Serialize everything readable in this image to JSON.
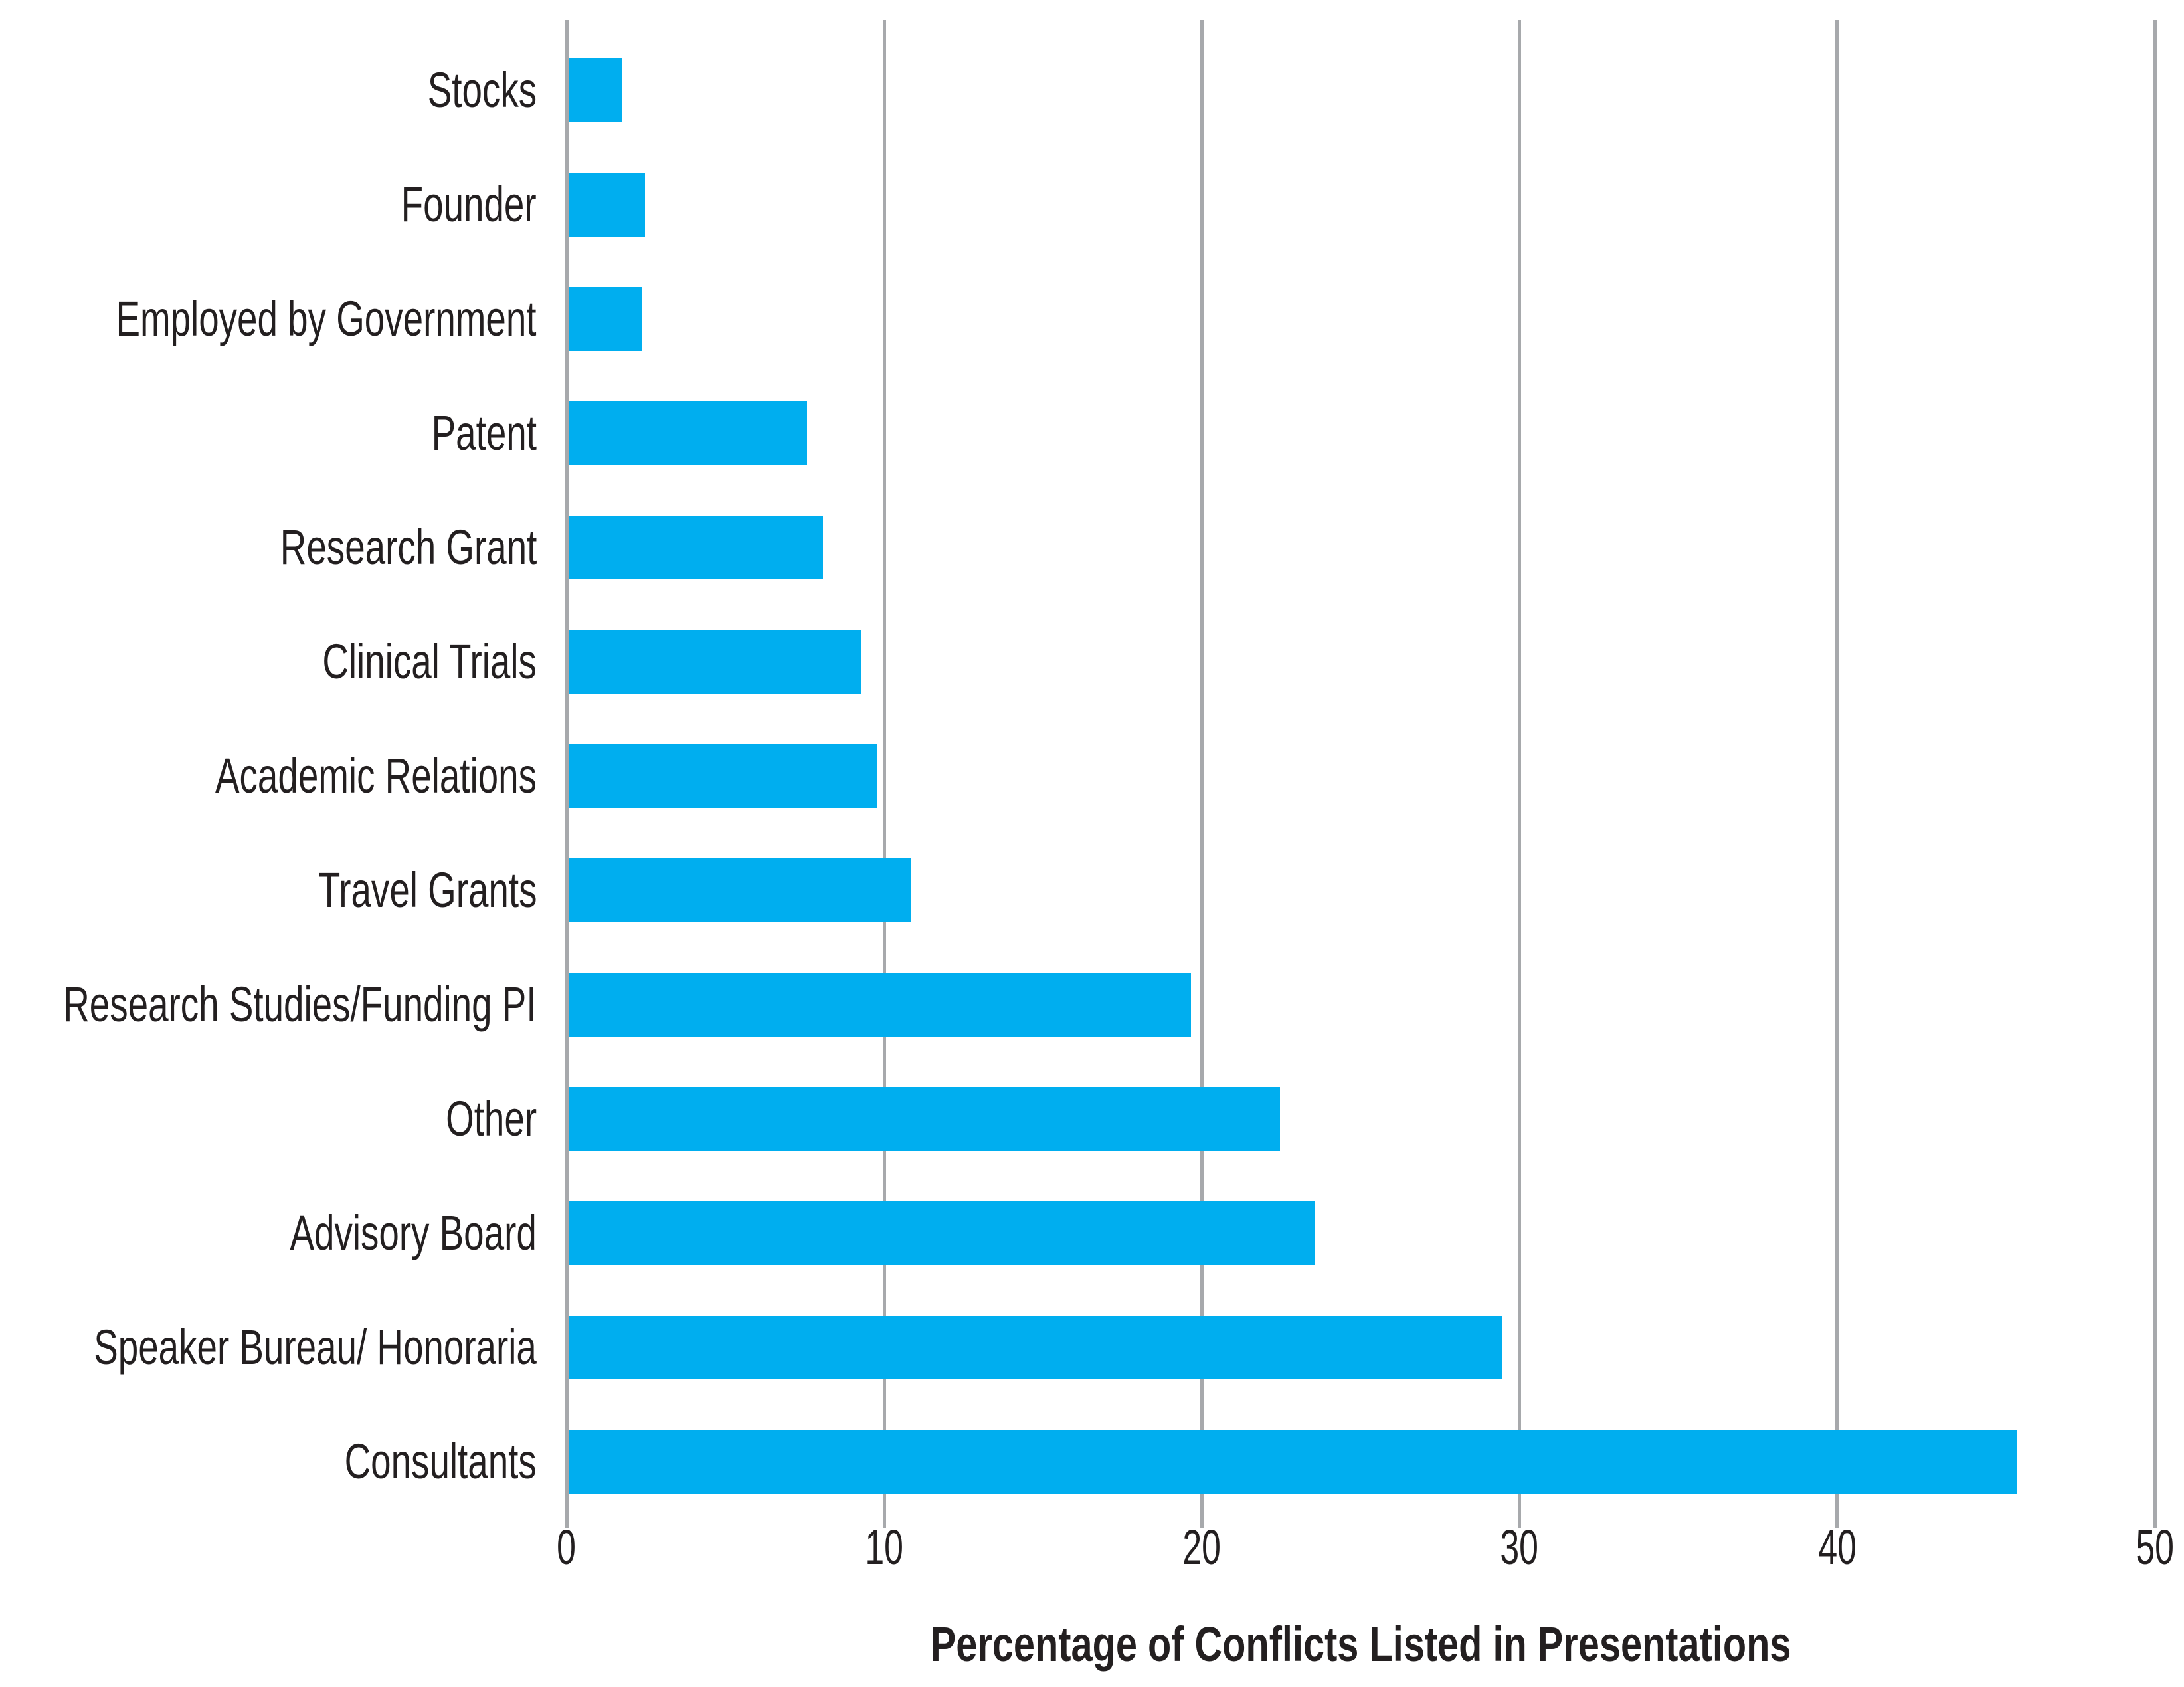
{
  "chart_data": {
    "type": "bar",
    "orientation": "horizontal",
    "title": "",
    "xlabel": "Percentage of Conflicts Listed in Presentations",
    "ylabel": "",
    "categories": [
      "Stocks",
      "Founder",
      "Employed by Government",
      "Patent",
      "Research Grant",
      "Clinical Trials",
      "Academic Relations",
      "Travel Grants",
      "Research Studies/Funding PI",
      "Other",
      "Advisory Board",
      "Speaker Bureau/ Honoraria",
      "Consultants"
    ],
    "values": [
      1.7,
      2.4,
      2.3,
      7.5,
      8.0,
      9.2,
      9.7,
      10.8,
      19.6,
      22.4,
      23.5,
      29.4,
      45.6
    ],
    "x_ticks": [
      0,
      10,
      20,
      30,
      40,
      50
    ],
    "xlim": [
      0,
      50
    ],
    "grid": "vertical-gridlines",
    "legend": "none",
    "colors": {
      "bar": "#00AEEF",
      "gridline": "#A7A9AC",
      "text": "#231F20",
      "background": "#FFFFFF"
    }
  }
}
